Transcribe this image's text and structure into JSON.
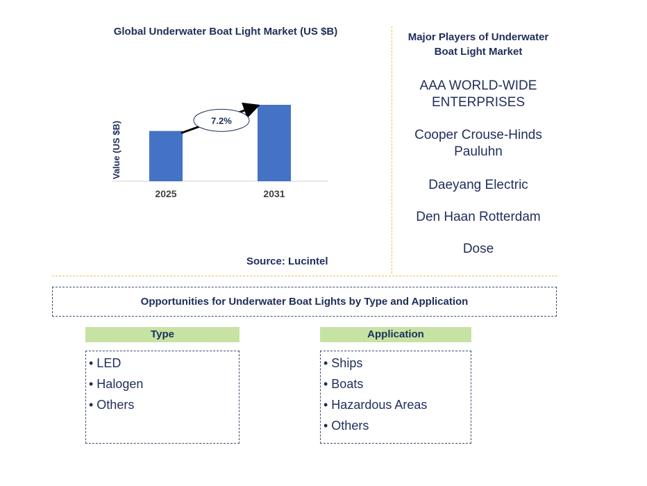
{
  "chart_data": {
    "type": "bar",
    "title": "Global Underwater Boat Light Market (US $B)",
    "ylabel": "Value (US $B)",
    "xlabel": "",
    "categories": [
      "2025",
      "2031"
    ],
    "values": [
      1.0,
      1.52
    ],
    "growth_label": "7.2%",
    "source": "Source: Lucintel",
    "colors": {
      "bar": "#4472c4",
      "arrow": "#000000",
      "axis": "#d0d0d0"
    }
  },
  "players": {
    "title": "Major Players of Underwater Boat Light Market",
    "items": [
      "AAA WORLD-WIDE ENTERPRISES",
      "Cooper Crouse-Hinds Pauluhn",
      "Daeyang Electric",
      "Den Haan Rotterdam",
      "Dose"
    ]
  },
  "opportunities": {
    "title": "Opportunities for Underwater Boat Lights by Type and Application",
    "type": {
      "header": "Type",
      "items": [
        "• LED",
        "• Halogen",
        "• Others"
      ]
    },
    "application": {
      "header": "Application",
      "items": [
        "• Ships",
        "• Boats",
        "• Hazardous Areas",
        "• Others"
      ]
    }
  }
}
